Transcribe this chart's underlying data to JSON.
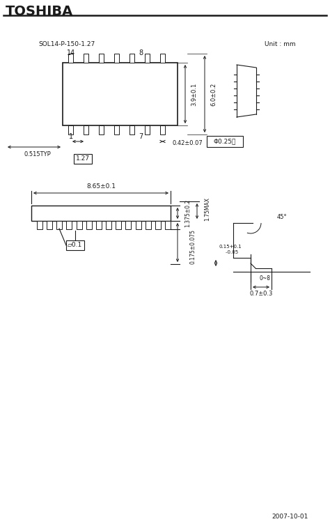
{
  "title": "TOSHIBA",
  "pkg_label": "SOL14-P-150-1.27",
  "unit_label": "Unit : mm",
  "footer": "2007-10-01",
  "bg_color": "#ffffff",
  "line_color": "#1a1a1a",
  "annotations": {
    "dim_39": "3.9±0.1",
    "dim_60": "6.0±0.2",
    "dim_0515": "0.515TYP",
    "dim_127": "1.27",
    "dim_042": "0.42±0.07",
    "dim_025": "Φ0.25Ⓞ",
    "dim_865": "8.65±0.1",
    "dim_1375": "1.375±0.2",
    "dim_175": "1.75MAX",
    "dim_0175": "0.175±0.075",
    "dim_flatness": "▱0.1",
    "dim_015a": "0.15+0.1",
    "dim_015b": "    -0.05",
    "dim_angle": "45°",
    "dim_07": "0.7±0.3",
    "dim_0deg": "0~8"
  }
}
